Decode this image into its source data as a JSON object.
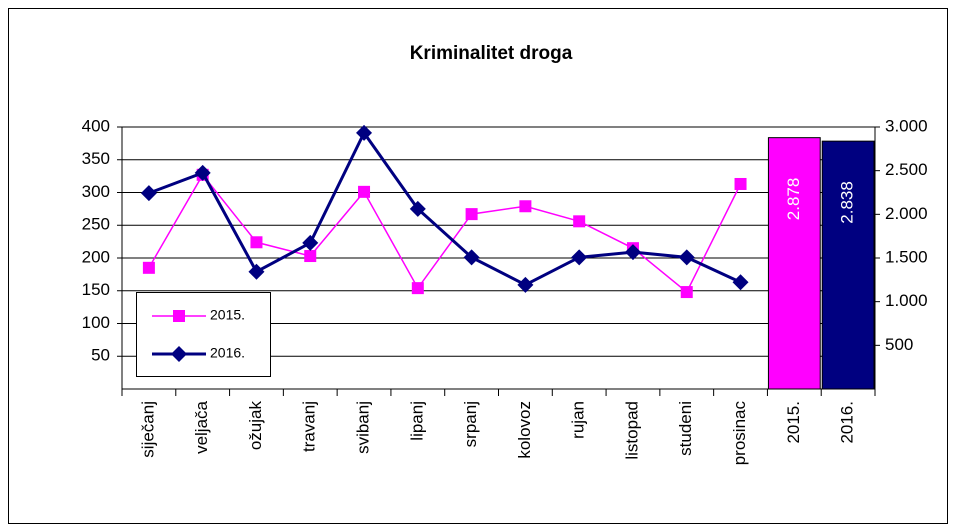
{
  "chart_data": {
    "type": "line",
    "title": "Kriminalitet droga",
    "categories": [
      "siječanj",
      "veljača",
      "ožujak",
      "travanj",
      "svibanj",
      "lipanj",
      "srpanj",
      "kolovoz",
      "rujan",
      "listopad",
      "studeni",
      "prosinac",
      "2015.",
      "2016."
    ],
    "series": [
      {
        "name": "2015.",
        "color": "#ff00ff",
        "values": [
          185,
          327,
          224,
          203,
          301,
          154,
          267,
          279,
          256,
          215,
          148,
          313,
          null,
          null
        ]
      },
      {
        "name": "2016.",
        "color": "#000080",
        "values": [
          299,
          330,
          179,
          223,
          391,
          275,
          201,
          159,
          201,
          209,
          201,
          163,
          null,
          null
        ]
      },
      {
        "type": "bar",
        "axis": "y2",
        "colors": [
          "#ff00ff",
          "#000080"
        ],
        "values": [
          null,
          null,
          null,
          null,
          null,
          null,
          null,
          null,
          null,
          null,
          null,
          null,
          2878,
          2838
        ],
        "value_labels": [
          null,
          null,
          null,
          null,
          null,
          null,
          null,
          null,
          null,
          null,
          null,
          null,
          "2.878",
          "2.838"
        ]
      }
    ],
    "ylim": [
      0,
      400
    ],
    "yticks": [
      50,
      100,
      150,
      200,
      250,
      300,
      350,
      400
    ],
    "y2lim": [
      0,
      3000
    ],
    "y2ticks": [
      {
        "value": 500,
        "label": "500"
      },
      {
        "value": 1000,
        "label": "1.000"
      },
      {
        "value": 1500,
        "label": "1.500"
      },
      {
        "value": 2000,
        "label": "2.000"
      },
      {
        "value": 2500,
        "label": "2.500"
      },
      {
        "value": 3000,
        "label": "3.000"
      }
    ],
    "grid": true,
    "legend": "lower left"
  }
}
